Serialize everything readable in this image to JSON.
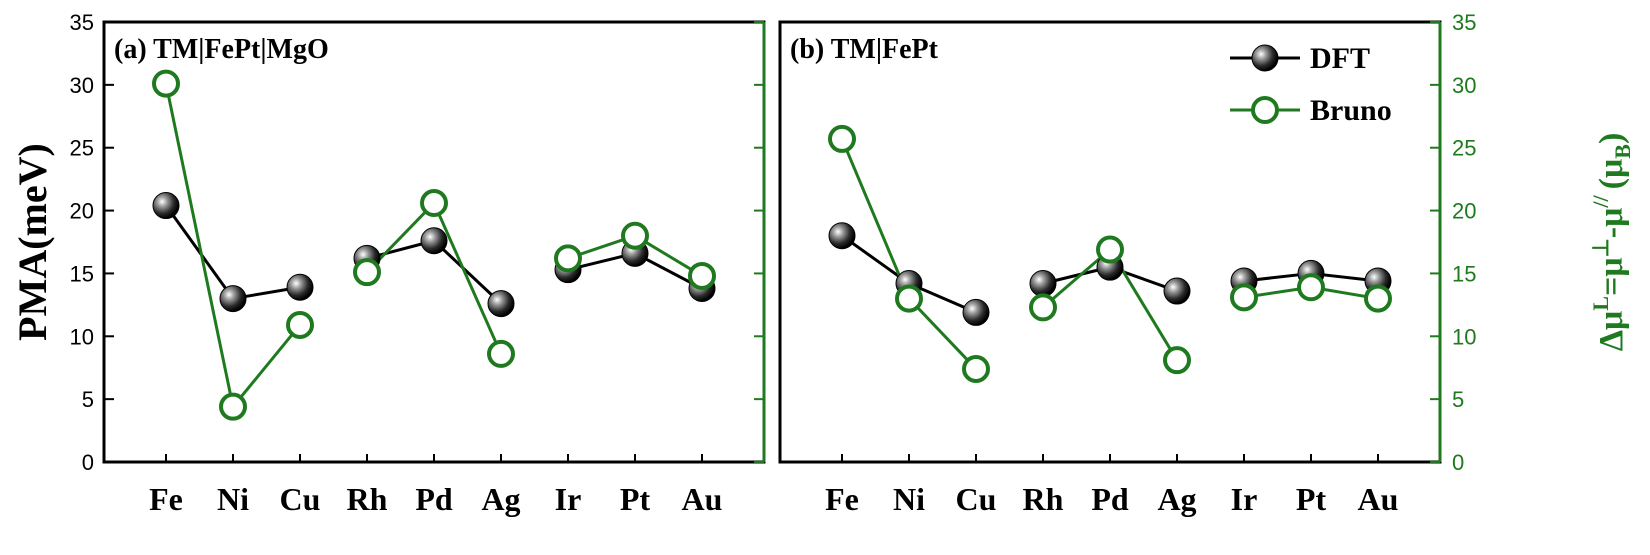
{
  "chart_data": [
    {
      "type": "line",
      "panel": "(a) TM|FePt|MgO",
      "categories": [
        "Fe",
        "Ni",
        "Cu",
        "Rh",
        "Pd",
        "Ag",
        "Ir",
        "Pt",
        "Au"
      ],
      "groups": [
        [
          0,
          1,
          2
        ],
        [
          3,
          4,
          5
        ],
        [
          6,
          7,
          8
        ]
      ],
      "series": [
        {
          "name": "DFT",
          "axis": "left",
          "values": [
            20.4,
            13.0,
            13.9,
            16.2,
            17.6,
            12.6,
            15.3,
            16.6,
            13.8
          ]
        },
        {
          "name": "Bruno",
          "axis": "right",
          "values": [
            30.1,
            4.4,
            10.9,
            15.1,
            20.6,
            8.6,
            16.2,
            18.0,
            14.8
          ]
        }
      ]
    },
    {
      "type": "line",
      "panel": "(b) TM|FePt",
      "categories": [
        "Fe",
        "Ni",
        "Cu",
        "Rh",
        "Pd",
        "Ag",
        "Ir",
        "Pt",
        "Au"
      ],
      "groups": [
        [
          0,
          1,
          2
        ],
        [
          3,
          4,
          5
        ],
        [
          6,
          7,
          8
        ]
      ],
      "series": [
        {
          "name": "DFT",
          "axis": "left",
          "values": [
            18.0,
            14.2,
            11.9,
            14.2,
            15.5,
            13.6,
            14.4,
            15.0,
            14.4
          ]
        },
        {
          "name": "Bruno",
          "axis": "right",
          "values": [
            25.7,
            13.0,
            7.4,
            12.3,
            16.9,
            8.1,
            13.1,
            13.9,
            13.0
          ]
        }
      ]
    }
  ],
  "axes": {
    "left_ylabel": "PMA(meV)",
    "right_ylabel": "Δμ",
    "right_ylabel_sup": "L",
    "right_ylabel_rest": "=μ",
    "right_ylabel_perp": "⊥",
    "right_ylabel_minus": "-μ",
    "right_ylabel_par": "//",
    "right_ylabel_unit": "(μ",
    "right_ylabel_unit_sub": "B",
    "right_ylabel_close": ")",
    "ylim": [
      0,
      35
    ],
    "yticks": [
      "0",
      "5",
      "10",
      "15",
      "20",
      "25",
      "30",
      "35"
    ]
  },
  "legend": {
    "items": [
      "DFT",
      "Bruno"
    ],
    "placement": "top-right"
  },
  "colors": {
    "dft": "#000000",
    "bruno": "#1f7a1f",
    "marker_fill_dark": "#1a1a1a"
  }
}
